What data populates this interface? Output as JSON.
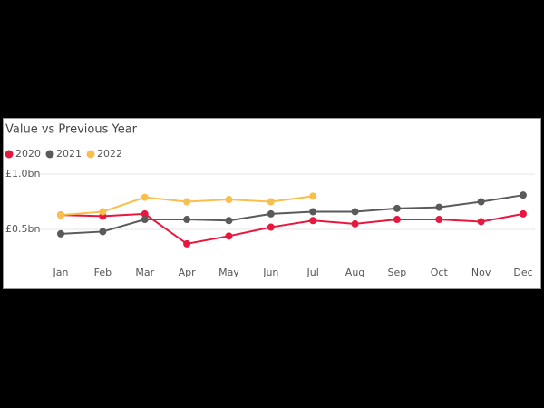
{
  "chart_data": {
    "type": "line",
    "title": "Value vs Previous Year",
    "categories": [
      "Jan",
      "Feb",
      "Mar",
      "Apr",
      "May",
      "Jun",
      "Jul",
      "Aug",
      "Sep",
      "Oct",
      "Nov",
      "Dec"
    ],
    "series": [
      {
        "name": "2020",
        "color": "#e8173f",
        "values": [
          0.63,
          0.62,
          0.64,
          0.37,
          0.44,
          0.52,
          0.58,
          0.55,
          0.59,
          0.59,
          0.57,
          0.64
        ]
      },
      {
        "name": "2021",
        "color": "#5a5a5a",
        "values": [
          0.46,
          0.48,
          0.59,
          0.59,
          0.58,
          0.64,
          0.66,
          0.66,
          0.69,
          0.7,
          0.75,
          0.81
        ]
      },
      {
        "name": "2022",
        "color": "#f9bf4c",
        "values": [
          0.63,
          0.66,
          0.79,
          0.75,
          0.77,
          0.75,
          0.8,
          null,
          null,
          null,
          null,
          null
        ]
      }
    ],
    "ylim": [
      0.2,
      1.05
    ],
    "yticks": [
      {
        "value": 0.5,
        "label": "£0.5bn"
      },
      {
        "value": 1.0,
        "label": "£1.0bn"
      }
    ],
    "grid": true
  }
}
